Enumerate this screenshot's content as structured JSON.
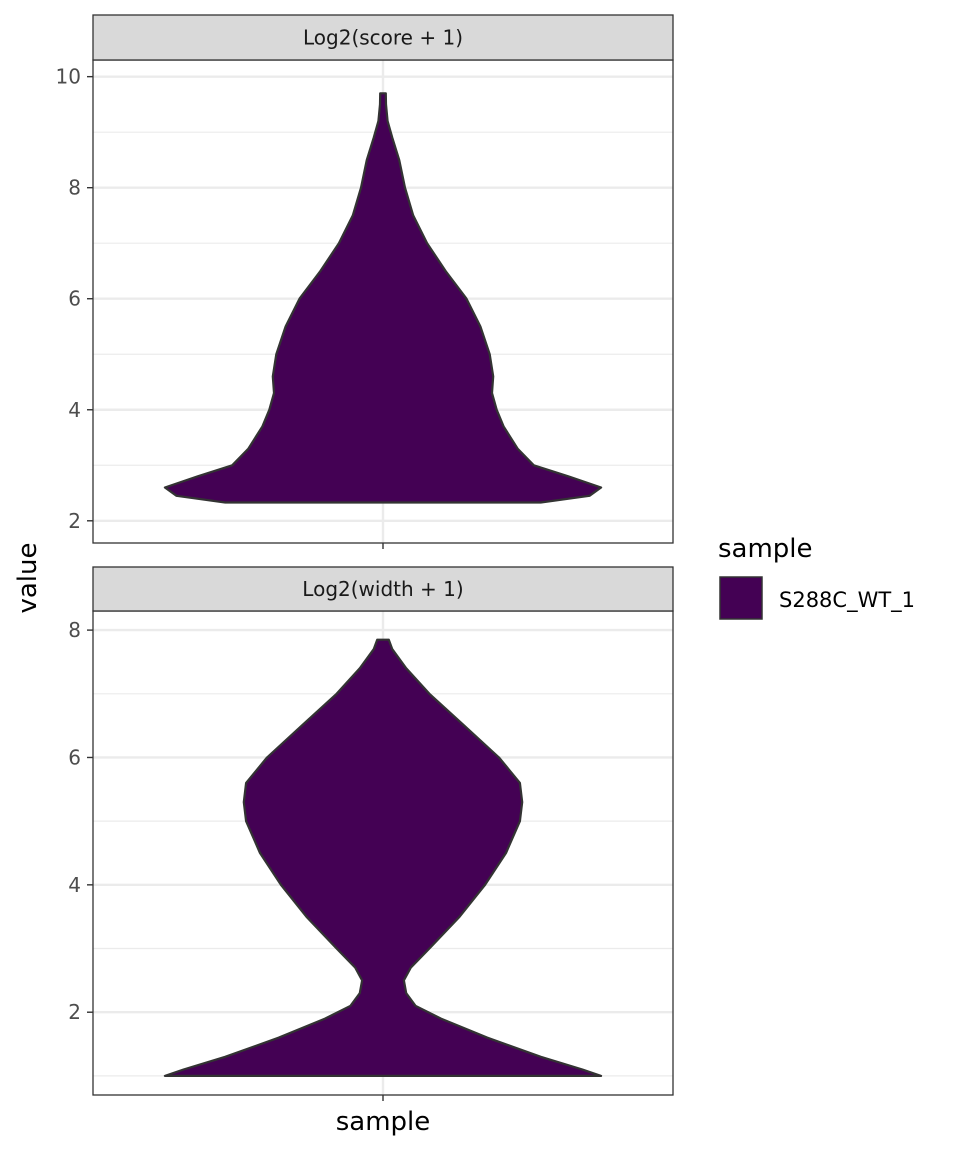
{
  "chart_data": {
    "type": "violin",
    "xlabel": "sample",
    "ylabel": "value",
    "legend": {
      "title": "sample",
      "position": "right",
      "entries": [
        {
          "label": "S288C_WT_1",
          "color": "#440154"
        }
      ]
    },
    "grid": true,
    "colors": {
      "fill": "#440154",
      "outline": "#333333",
      "strip_bg": "#d9d9d9",
      "grid": "#ebebeb"
    },
    "panels": [
      {
        "strip": "Log2(score + 1)",
        "ylim": [
          1.6,
          10.3
        ],
        "yticks": [
          "2",
          "4",
          "6",
          "8",
          "10"
        ],
        "series": [
          {
            "name": "S288C_WT_1",
            "min": 2.33,
            "max": 9.7,
            "density": [
              [
                2.33,
                0.68
              ],
              [
                2.45,
                0.89
              ],
              [
                2.6,
                0.94
              ],
              [
                2.8,
                0.8
              ],
              [
                3.0,
                0.65
              ],
              [
                3.3,
                0.58
              ],
              [
                3.7,
                0.52
              ],
              [
                4.0,
                0.49
              ],
              [
                4.3,
                0.47
              ],
              [
                4.6,
                0.475
              ],
              [
                5.0,
                0.46
              ],
              [
                5.5,
                0.42
              ],
              [
                6.0,
                0.36
              ],
              [
                6.5,
                0.27
              ],
              [
                7.0,
                0.19
              ],
              [
                7.5,
                0.13
              ],
              [
                8.0,
                0.095
              ],
              [
                8.5,
                0.07
              ],
              [
                8.9,
                0.04
              ],
              [
                9.2,
                0.02
              ],
              [
                9.5,
                0.013
              ],
              [
                9.7,
                0.012
              ]
            ]
          }
        ]
      },
      {
        "strip": "Log2(width + 1)",
        "ylim": [
          0.7,
          8.3
        ],
        "yticks": [
          "2",
          "4",
          "6",
          "8"
        ],
        "series": [
          {
            "name": "S288C_WT_1",
            "min": 1.0,
            "max": 7.85,
            "density": [
              [
                1.0,
                0.94
              ],
              [
                1.1,
                0.86
              ],
              [
                1.3,
                0.68
              ],
              [
                1.6,
                0.45
              ],
              [
                1.9,
                0.25
              ],
              [
                2.1,
                0.14
              ],
              [
                2.3,
                0.1
              ],
              [
                2.5,
                0.09
              ],
              [
                2.7,
                0.12
              ],
              [
                3.0,
                0.2
              ],
              [
                3.5,
                0.33
              ],
              [
                4.0,
                0.44
              ],
              [
                4.5,
                0.53
              ],
              [
                5.0,
                0.59
              ],
              [
                5.3,
                0.6
              ],
              [
                5.6,
                0.59
              ],
              [
                6.0,
                0.5
              ],
              [
                6.5,
                0.35
              ],
              [
                7.0,
                0.2
              ],
              [
                7.4,
                0.1
              ],
              [
                7.7,
                0.04
              ],
              [
                7.85,
                0.025
              ]
            ]
          }
        ]
      }
    ]
  }
}
